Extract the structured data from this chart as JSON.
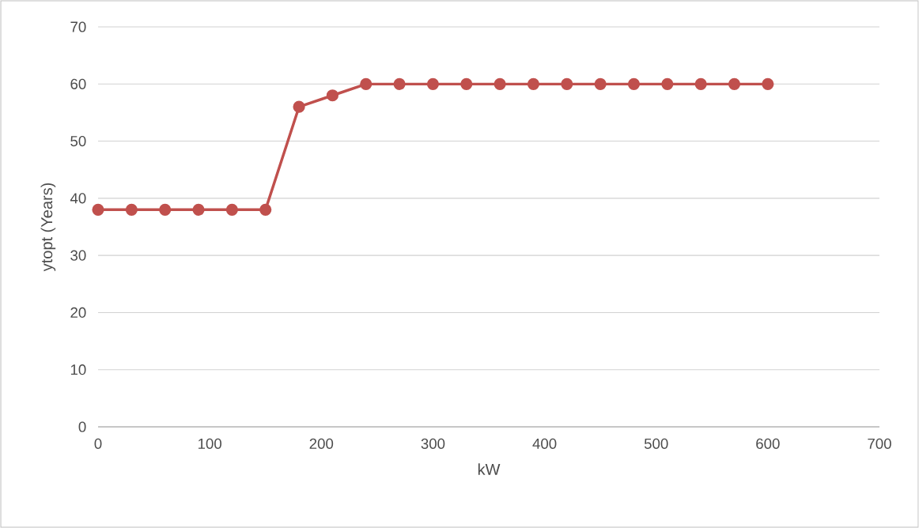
{
  "chart_data": {
    "type": "line",
    "xlabel": "kW",
    "ylabel": "ytopt (Years)",
    "x": [
      0,
      30,
      60,
      90,
      120,
      150,
      180,
      210,
      240,
      270,
      300,
      330,
      360,
      390,
      420,
      450,
      480,
      510,
      540,
      570,
      600
    ],
    "series": [
      {
        "color": "#c0504d",
        "values": [
          38,
          38,
          38,
          38,
          38,
          38,
          56,
          58,
          60,
          60,
          60,
          60,
          60,
          60,
          60,
          60,
          60,
          60,
          60,
          60,
          60
        ]
      }
    ],
    "xlim": [
      0,
      700
    ],
    "xticks": [
      0,
      100,
      200,
      300,
      400,
      500,
      600,
      700
    ],
    "ylim": [
      0,
      70
    ],
    "yticks": [
      0,
      10,
      20,
      30,
      40,
      50,
      60,
      70
    ],
    "grid": "y",
    "marker": "circle",
    "line_style": "solid"
  }
}
